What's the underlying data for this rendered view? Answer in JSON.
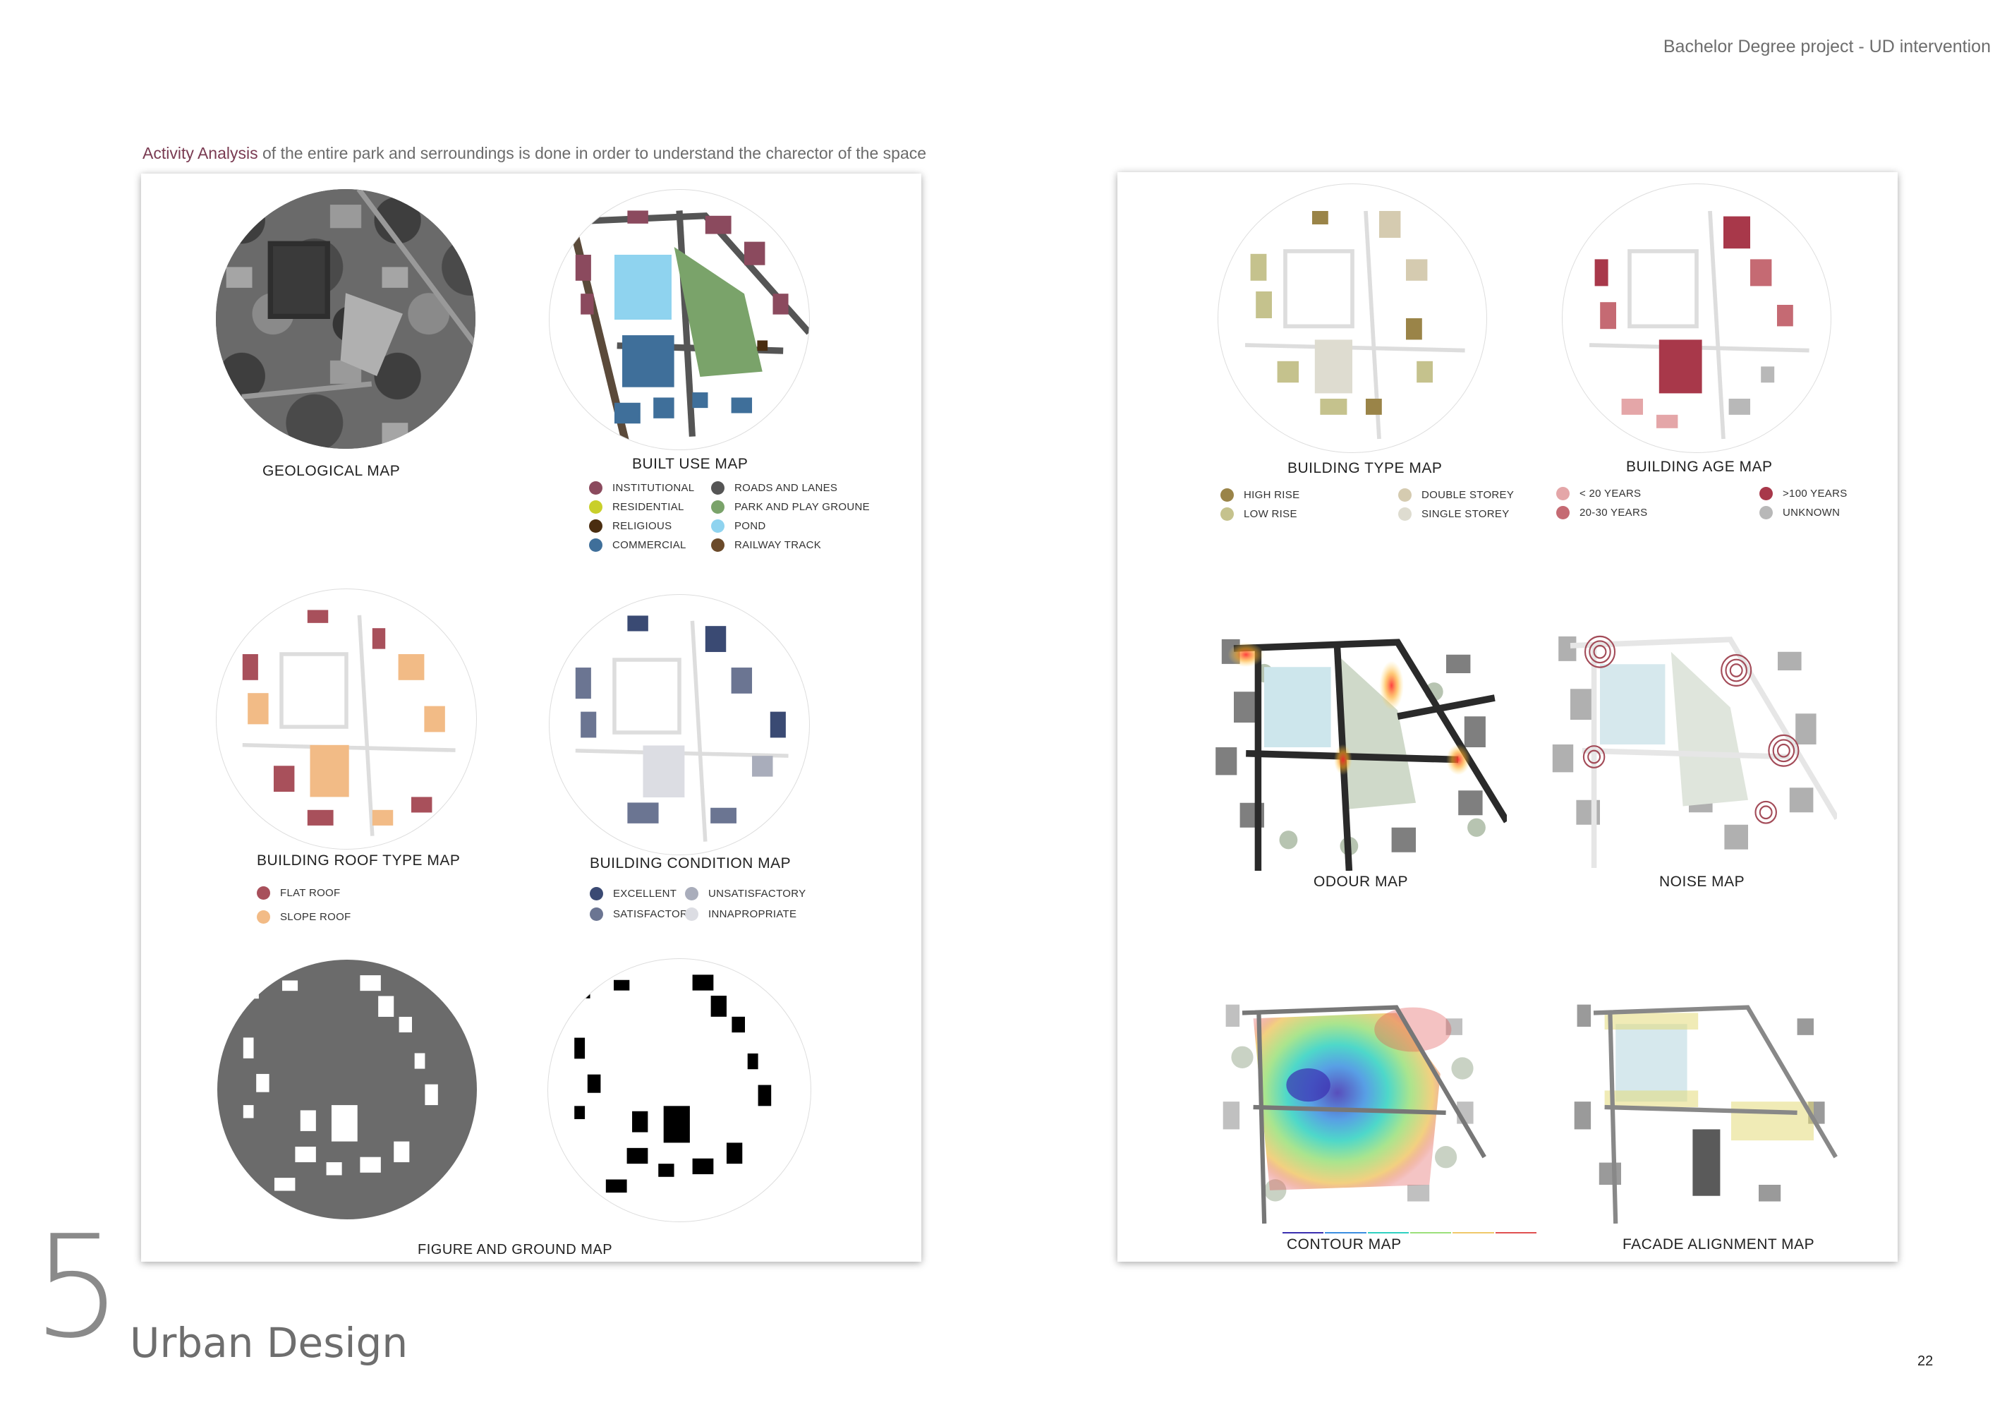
{
  "header": {
    "project": "Bachelor Degree project - UD intervention"
  },
  "intro": {
    "highlight": "Activity Analysis",
    "rest": " of the entire park and serroundings is done in order to understand the charector of the space"
  },
  "footer": {
    "number": "5",
    "section": "Urban Design",
    "page": "22"
  },
  "maps": {
    "geological": "GEOLOGICAL MAP",
    "built_use": "BUILT USE MAP",
    "roof_type": "BUILDING ROOF TYPE MAP",
    "condition": "BUILDING CONDITION MAP",
    "figure_ground": "FIGURE AND GROUND MAP",
    "building_type": "BUILDING TYPE MAP",
    "building_age": "BUILDING AGE MAP",
    "odour": "ODOUR MAP",
    "noise": "NOISE MAP",
    "contour": "CONTOUR MAP",
    "facade": "FACADE ALIGNMENT MAP"
  },
  "legends": {
    "built_use_left": [
      {
        "label": "INSTITUTIONAL",
        "color": "#8b4a5e"
      },
      {
        "label": "RESIDENTIAL",
        "color": "#c9cf2a"
      },
      {
        "label": "RELIGIOUS",
        "color": "#4a2d10"
      },
      {
        "label": "COMMERCIAL",
        "color": "#3f6f9a"
      }
    ],
    "built_use_right": [
      {
        "label": "ROADS AND LANES",
        "color": "#555555"
      },
      {
        "label": "PARK AND PLAY GROUNE",
        "color": "#7aa36a"
      },
      {
        "label": "POND",
        "color": "#8fd3ef"
      },
      {
        "label": "RAILWAY TRACK",
        "color": "#6b4a2a"
      }
    ],
    "roof": [
      {
        "label": "FLAT  ROOF",
        "color": "#a8505b"
      },
      {
        "label": "SLOPE ROOF",
        "color": "#f2bb86"
      }
    ],
    "condition_left": [
      {
        "label": "EXCELLENT",
        "color": "#3a4a73"
      },
      {
        "label": "SATISFACTORY",
        "color": "#6b7592"
      }
    ],
    "condition_right": [
      {
        "label": "UNSATISFACTORY",
        "color": "#a9adbb"
      },
      {
        "label": "INNAPROPRIATE",
        "color": "#dcdde3"
      }
    ],
    "type_left": [
      {
        "label": "HIGH RISE",
        "color": "#9a8448"
      },
      {
        "label": "LOW RISE",
        "color": "#c5c28d"
      }
    ],
    "type_right": [
      {
        "label": "DOUBLE STOREY",
        "color": "#d5cbb0"
      },
      {
        "label": "SINGLE STOREY",
        "color": "#dedcd0"
      }
    ],
    "age_left": [
      {
        "label": "< 20 YEARS",
        "color": "#e4a6a8"
      },
      {
        "label": "20-30 YEARS",
        "color": "#c56a73"
      }
    ],
    "age_right": [
      {
        "label": ">100 YEARS",
        "color": "#a8384a"
      },
      {
        "label": "UNKNOWN",
        "color": "#b8b8b8"
      }
    ]
  }
}
